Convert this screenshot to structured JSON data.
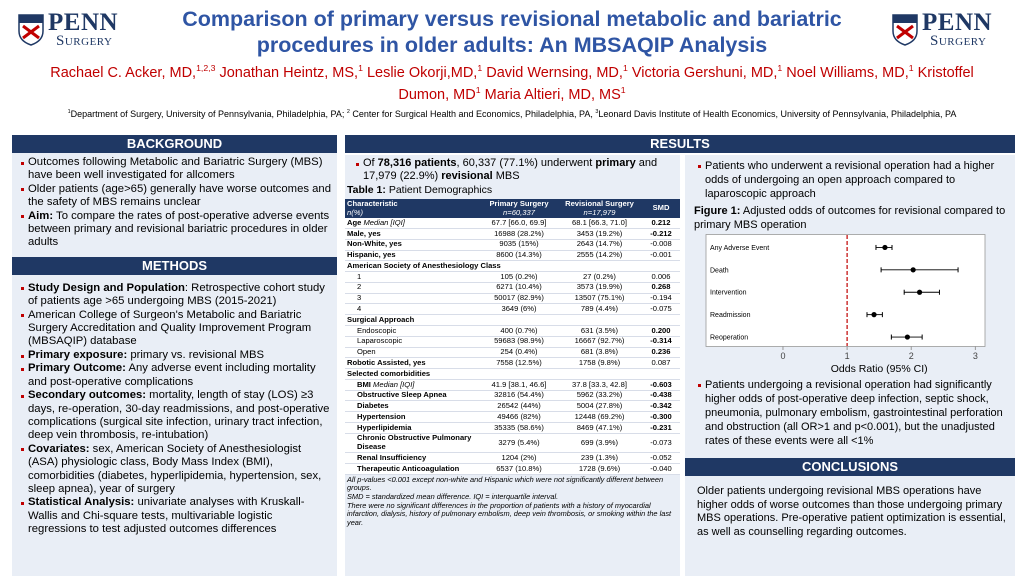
{
  "logos": [
    {
      "name": "PENN",
      "subtitle": "Surgery"
    },
    {
      "name": "PENN",
      "subtitle": "Surgery"
    }
  ],
  "header": {
    "title": "Comparison of primary versus revisional metabolic and bariatric procedures in older adults: An MBSAQIP Analysis",
    "authors": [
      {
        "name": "Rachael C. Acker, MD,",
        "sup": "1,2,3"
      },
      {
        "name": "Jonathan Heintz, MS,",
        "sup": "1"
      },
      {
        "name": "Leslie Okorji,MD,",
        "sup": "1"
      },
      {
        "name": "David Wernsing, MD,",
        "sup": "1"
      },
      {
        "name": "Victoria Gershuni, MD,",
        "sup": "1"
      },
      {
        "name": "Noel Williams, MD,",
        "sup": "1"
      },
      {
        "name": "Kristoffel Dumon, MD",
        "sup": "1"
      },
      {
        "name": "Maria Altieri, MD, MS",
        "sup": "1"
      }
    ],
    "affiliations": [
      {
        "sup": "1",
        "text": "Department of Surgery, University of Pennsylvania, Philadelphia, PA; "
      },
      {
        "sup": "2",
        "text": " Center for Surgical Health and Economics, Philadelphia, PA, "
      },
      {
        "sup": "3",
        "text": "Leonard Davis Institute of Health Economics, University of Pennsylvania, Philadelphia, PA"
      }
    ]
  },
  "background": {
    "heading": "BACKGROUND",
    "bullets": [
      [
        {
          "text": "Outcomes following Metabolic and Bariatric Surgery (MBS) have been well investigated for allcomers"
        }
      ],
      [
        {
          "text": "Older patients (age>65) generally have worse outcomes and the safety of MBS remains unclear"
        }
      ],
      [
        {
          "text": "Aim:",
          "bold": true
        },
        {
          "text": " To compare the rates of post-operative adverse events between primary and revisional bariatric procedures in older adults"
        }
      ]
    ]
  },
  "methods": {
    "heading": "METHODS",
    "bullets": [
      [
        {
          "text": "Study Design and Population",
          "bold": true
        },
        {
          "text": ": Retrospective cohort study of patients age >65 undergoing MBS (2015-2021)"
        }
      ],
      [
        {
          "text": "American College of Surgeon's Metabolic and Bariatric Surgery Accreditation and Quality Improvement Program (MBSAQIP) database"
        }
      ],
      [
        {
          "text": "Primary exposure:",
          "bold": true
        },
        {
          "text": " primary vs. revisional MBS"
        }
      ],
      [
        {
          "text": "Primary Outcome:",
          "bold": true
        },
        {
          "text": " Any adverse event including mortality and post-operative complications"
        }
      ],
      [
        {
          "text": "Secondary outcomes:",
          "bold": true
        },
        {
          "text": " mortality, length of stay (LOS) ≥3 days, re-operation, 30-day readmissions, and post-operative complications (surgical site infection, urinary tract infection, deep vein thrombosis, re-intubation)"
        }
      ],
      [
        {
          "text": "Covariates:",
          "bold": true
        },
        {
          "text": " sex, American Society of Anesthesiologist (ASA) physiologic class, Body Mass Index (BMI), comorbidities (diabetes, hyperlipidemia, hypertension, sex, sleep apnea), year of surgery"
        }
      ],
      [
        {
          "text": "Statistical Analysis:",
          "bold": true
        },
        {
          "text": " univariate analyses with Kruskall-Wallis and Chi-square tests, multivariable logistic regressions to test adjusted outcomes differences"
        }
      ]
    ]
  },
  "results": {
    "heading": "RESULTS",
    "bullets": [
      [
        {
          "text": "Of "
        },
        {
          "text": "78,316 patients",
          "bold": true
        },
        {
          "text": ", 60,337 (77.1%) underwent "
        },
        {
          "text": "primary",
          "bold": true
        },
        {
          "text": " and 17,979 (22.9%) "
        },
        {
          "text": "revisional",
          "bold": true
        },
        {
          "text": " MBS"
        }
      ]
    ],
    "table": {
      "caption": [
        {
          "text": "Table 1:",
          "bold": true
        },
        {
          "text": " Patient Demographics"
        }
      ],
      "columns": [
        {
          "title": "Characteristic",
          "sub": "n(%)"
        },
        {
          "title": "Primary Surgery",
          "sub": "n=60,337"
        },
        {
          "title": "Revisional Surgery",
          "sub": "n=17,979"
        },
        {
          "title": "SMD"
        }
      ],
      "rows": [
        {
          "label": "Age",
          "note": "Median [IQI]",
          "primary": "67.7 [66.0, 69.9]",
          "revisional": "68.1 [66.3, 71.0]",
          "smd": "0.212",
          "smd_bold": true
        },
        {
          "label": "Male, yes",
          "primary": "16988 (28.2%)",
          "revisional": "3453 (19.2%)",
          "smd": "-0.212",
          "smd_bold": true
        },
        {
          "label": "Non-White, yes",
          "primary": "9035 (15%)",
          "revisional": "2643 (14.7%)",
          "smd": "-0.008"
        },
        {
          "label": "Hispanic, yes",
          "primary": "8600 (14.3%)",
          "revisional": "2555 (14.2%)",
          "smd": "-0.001"
        },
        {
          "label": "American Society of Anesthesiology Class",
          "section": true
        },
        {
          "label": "1",
          "indent": true,
          "primary": "105 (0.2%)",
          "revisional": "27 (0.2%)",
          "smd": "0.006"
        },
        {
          "label": "2",
          "indent": true,
          "primary": "6271 (10.4%)",
          "revisional": "3573 (19.9%)",
          "smd": "0.268",
          "smd_bold": true
        },
        {
          "label": "3",
          "indent": true,
          "primary": "50017 (82.9%)",
          "revisional": "13507 (75.1%)",
          "smd": "-0.194"
        },
        {
          "label": "4",
          "indent": true,
          "primary": "3649 (6%)",
          "revisional": "789 (4.4%)",
          "smd": "-0.075"
        },
        {
          "label": "Surgical Approach",
          "section": true
        },
        {
          "label": "Endoscopic",
          "indent": true,
          "primary": "400 (0.7%)",
          "revisional": "631 (3.5%)",
          "smd": "0.200",
          "smd_bold": true
        },
        {
          "label": "Laparoscopic",
          "indent": true,
          "primary": "59683 (98.9%)",
          "revisional": "16667 (92.7%)",
          "smd": "-0.314",
          "smd_bold": true
        },
        {
          "label": "Open",
          "indent": true,
          "primary": "254 (0.4%)",
          "revisional": "681 (3.8%)",
          "smd": "0.236",
          "smd_bold": true
        },
        {
          "label": "Robotic Assisted, yes",
          "primary": "7558 (12.5%)",
          "revisional": "1758 (9.8%)",
          "smd": "0.087"
        },
        {
          "label": "Selected comorbidities",
          "section": true
        },
        {
          "label": "BMI",
          "note": "Median [IQI]",
          "indent": true,
          "primary": "41.9 [38.1, 46.6]",
          "revisional": "37.8 [33.3, 42.8]",
          "smd": "-0.603",
          "smd_bold": true
        },
        {
          "label": "Obstructive Sleep  Apnea",
          "indent": true,
          "primary": "32816 (54.4%)",
          "revisional": "5962 (33.2%)",
          "smd": "-0.438",
          "smd_bold": true
        },
        {
          "label": "Diabetes",
          "indent": true,
          "primary": "26542 (44%)",
          "revisional": "5004 (27.8%)",
          "smd": "-0.342",
          "smd_bold": true
        },
        {
          "label": "Hypertension",
          "indent": true,
          "primary": "49466 (82%)",
          "revisional": "12448 (69.2%)",
          "smd": "-0.300",
          "smd_bold": true
        },
        {
          "label": "Hyperlipidemia",
          "indent": true,
          "primary": "35335 (58.6%)",
          "revisional": "8469 (47.1%)",
          "smd": "-0.231",
          "smd_bold": true
        },
        {
          "label": "Chronic Obstructive Pulmonary Disease",
          "indent": true,
          "primary": "3279 (5.4%)",
          "revisional": "699 (3.9%)",
          "smd": "-0.073"
        },
        {
          "label": "Renal Insufficiency",
          "indent": true,
          "primary": "1204 (2%)",
          "revisional": "239 (1.3%)",
          "smd": "-0.052"
        },
        {
          "label": "Therapeutic Anticoagulation",
          "indent": true,
          "primary": "6537 (10.8%)",
          "revisional": "1728 (9.6%)",
          "smd": "-0.040"
        }
      ],
      "footnotes": [
        "All p-values <0.001 except non-white and Hispanic  which were not significantly different between groups.",
        "SMD = standardized mean difference. IQI = interquartile interval.",
        "There were no significant differences in the proportion of patients with a history of myocardial infarction, dialysis, history of pulmonary embolism, deep vein thrombosis, or smoking within the last year."
      ]
    },
    "right_bullets_top": [
      [
        {
          "text": "Patients who underwent a revisional operation had a higher odds of undergoing an open approach compared to laparoscopic approach"
        }
      ]
    ],
    "figure": {
      "type": "forest",
      "caption": [
        {
          "text": "Figure 1:",
          "bold": true
        },
        {
          "text": " Adjusted odds of outcomes for revisional compared to primary MBS operation"
        }
      ],
      "categories": [
        "Any Adverse Event",
        "Death",
        "Intervention",
        "Readmission",
        "Reoperation"
      ],
      "values": [
        1.59,
        2.03,
        2.13,
        1.42,
        1.94
      ],
      "ci_low": [
        1.45,
        1.53,
        1.89,
        1.31,
        1.69
      ],
      "ci_high": [
        1.7,
        2.73,
        2.44,
        1.55,
        2.17
      ],
      "xlim": [
        -1.2,
        3.15
      ],
      "xticks": [
        0,
        1,
        2,
        3
      ],
      "reference": 1,
      "xlabel": "Odds Ratio (95% CI)",
      "color": "#000000",
      "reference_color": "#c00000"
    },
    "right_bullets_bottom": [
      [
        {
          "text": "Patients undergoing a revisional operation had significantly higher odds of post-operative deep infection, septic shock, pneumonia, pulmonary embolism, gastrointestinal perforation and obstruction (all OR>1 and p<0.001), but the unadjusted rates of these events were all <1%"
        }
      ]
    ]
  },
  "conclusions": {
    "heading": "CONCLUSIONS",
    "text": "Older patients undergoing revisional MBS operations have higher odds of worse outcomes than those undergoing primary MBS operations.  Pre-operative patient optimization is essential, as well as counselling regarding outcomes."
  }
}
